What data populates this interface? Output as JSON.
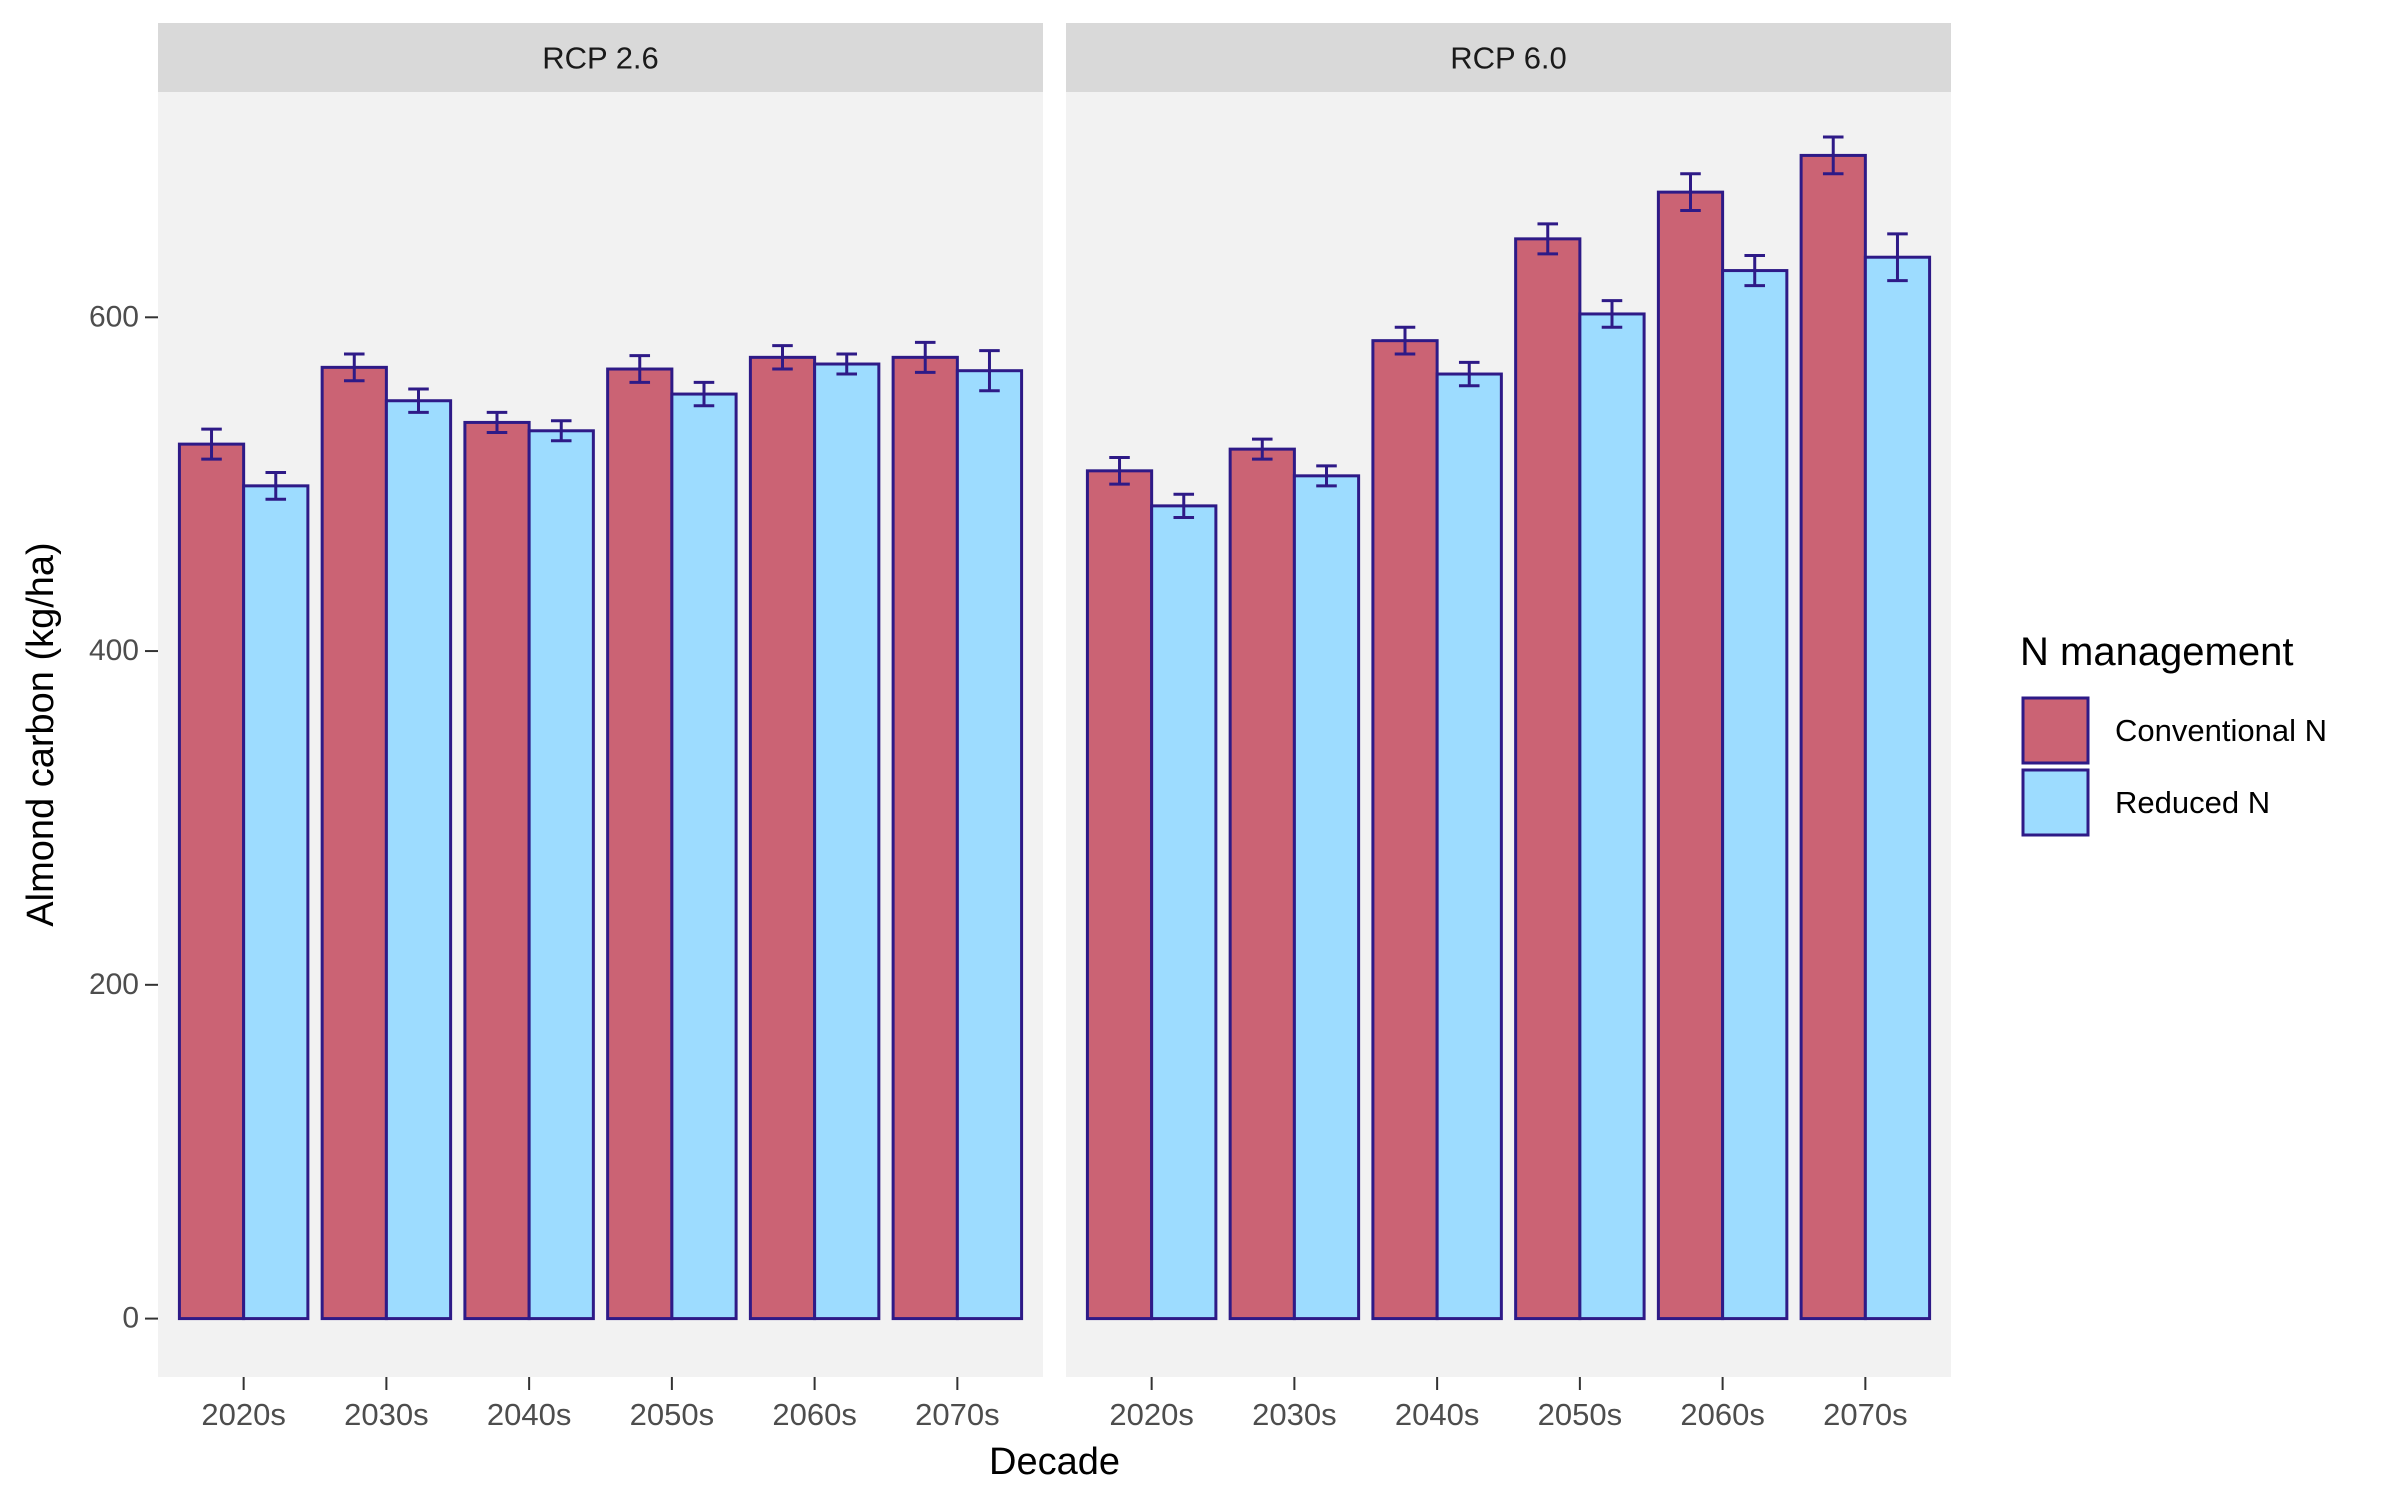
{
  "chart_data": {
    "type": "bar",
    "facets": [
      "RCP 2.6",
      "RCP 6.0"
    ],
    "categories": [
      "2020s",
      "2030s",
      "2040s",
      "2050s",
      "2060s",
      "2070s"
    ],
    "xlabel": "Decade",
    "ylabel": "Almond carbon (kg/ha)",
    "ylim": [
      -35,
      735
    ],
    "yticks": [
      0,
      200,
      400,
      600
    ],
    "ytick_labels": [
      "0",
      "200",
      "400",
      "600"
    ],
    "grid": false,
    "legend": {
      "title": "N management",
      "placement": "right",
      "entries": [
        "Conventional N",
        "Reduced N"
      ]
    },
    "series": [
      {
        "name": "Conventional N",
        "color": "#cb6374",
        "values": {
          "RCP 2.6": [
            524,
            570,
            537,
            569,
            576,
            576
          ],
          "RCP 6.0": [
            508,
            521,
            586,
            647,
            675,
            697
          ]
        },
        "errors": {
          "RCP 2.6": [
            9,
            8,
            6,
            8,
            7,
            9
          ],
          "RCP 6.0": [
            8,
            6,
            8,
            9,
            11,
            11
          ]
        }
      },
      {
        "name": "Reduced N",
        "color": "#9ddcff",
        "values": {
          "RCP 2.6": [
            499,
            550,
            532,
            554,
            572,
            568
          ],
          "RCP 6.0": [
            487,
            505,
            566,
            602,
            628,
            636
          ]
        },
        "errors": {
          "RCP 2.6": [
            8,
            7,
            6,
            7,
            6,
            12
          ],
          "RCP 6.0": [
            7,
            6,
            7,
            8,
            9,
            14
          ]
        }
      }
    ],
    "colors": {
      "panel_bg": "#f2f2f2",
      "strip_bg": "#d9d9d9",
      "bar_outline": "#2e1a87",
      "tick_text": "#4d4d4d",
      "tick_mark": "#333333"
    }
  }
}
